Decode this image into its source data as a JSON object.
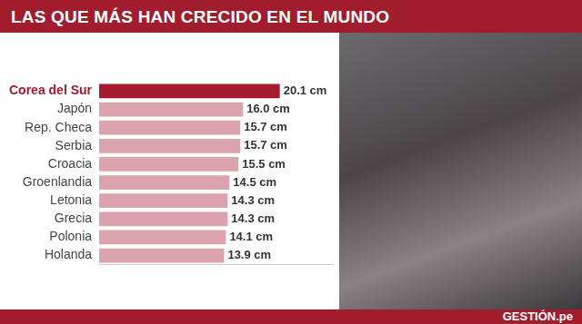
{
  "chart_data": {
    "type": "bar",
    "title": "LAS QUE MÁS HAN CRECIDO EN EL MUNDO",
    "annotations": [
      "GESTIÓN.pe"
    ],
    "orientation": "horizontal",
    "categories": [
      "Corea del Sur",
      "Japón",
      "Rep. Checa",
      "Serbia",
      "Croacia",
      "Groenlandia",
      "Letonia",
      "Grecia",
      "Polonia",
      "Holanda"
    ],
    "values": [
      20.1,
      16.0,
      15.7,
      15.7,
      15.5,
      14.5,
      14.3,
      14.3,
      14.1,
      13.9
    ],
    "value_labels": [
      "20.1 cm",
      "16.0 cm",
      "15.7 cm",
      "15.7 cm",
      "15.5 cm",
      "14.5 cm",
      "14.3 cm",
      "14.3 cm",
      "14.1 cm",
      "13.9 cm"
    ],
    "colors": [
      "#a6192e",
      "#dba3ad",
      "#dba3ad",
      "#dba3ad",
      "#dba3ad",
      "#dba3ad",
      "#dba3ad",
      "#dba3ad",
      "#dba3ad",
      "#dba3ad"
    ],
    "xlim": [
      0,
      26
    ],
    "data_labels": true,
    "tick_labels": "y",
    "grid": false
  }
}
